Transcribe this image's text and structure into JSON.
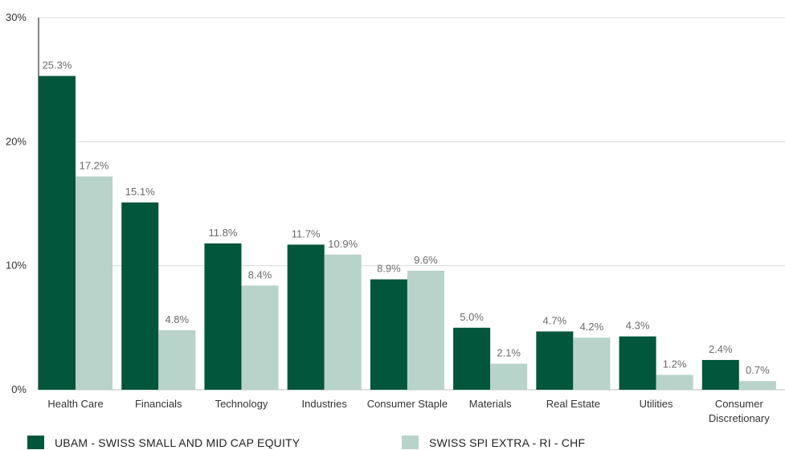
{
  "chart_data": {
    "type": "bar",
    "categories": [
      "Health Care",
      "Financials",
      "Technology",
      "Industries",
      "Consumer Staple",
      "Materials",
      "Real Estate",
      "Utilities",
      "Consumer Discretionary"
    ],
    "category_labels": [
      [
        "Health Care"
      ],
      [
        "Financials"
      ],
      [
        "Technology"
      ],
      [
        "Industries"
      ],
      [
        "Consumer Staple"
      ],
      [
        "Materials"
      ],
      [
        "Real Estate"
      ],
      [
        "Utilities"
      ],
      [
        "Consumer",
        "Discretionary"
      ]
    ],
    "series": [
      {
        "name": "UBAM - SWISS SMALL AND MID CAP EQUITY",
        "color": "#02563c",
        "values": [
          25.3,
          15.1,
          11.8,
          11.7,
          8.9,
          5.0,
          4.7,
          4.3,
          2.4
        ],
        "labels": [
          "25.3%",
          "15.1%",
          "11.8%",
          "11.7%",
          "8.9%",
          "5.0%",
          "4.7%",
          "4.3%",
          "2.4%"
        ]
      },
      {
        "name": "SWISS SPI EXTRA - RI - CHF",
        "color": "#b8d3ca",
        "values": [
          17.2,
          4.8,
          8.4,
          10.9,
          9.6,
          2.1,
          4.2,
          1.2,
          0.7
        ],
        "labels": [
          "17.2%",
          "4.8%",
          "8.4%",
          "10.9%",
          "9.6%",
          "2.1%",
          "4.2%",
          "1.2%",
          "0.7%"
        ]
      }
    ],
    "yticks": [
      0,
      10,
      20,
      30
    ],
    "ytick_labels": [
      "0%",
      "10%",
      "20%",
      "30%"
    ],
    "ylim": [
      0,
      30
    ],
    "grid": true,
    "gridline_color": "#d9d9d9",
    "legend_position": "bottom",
    "title": "",
    "xlabel": "",
    "ylabel": ""
  }
}
